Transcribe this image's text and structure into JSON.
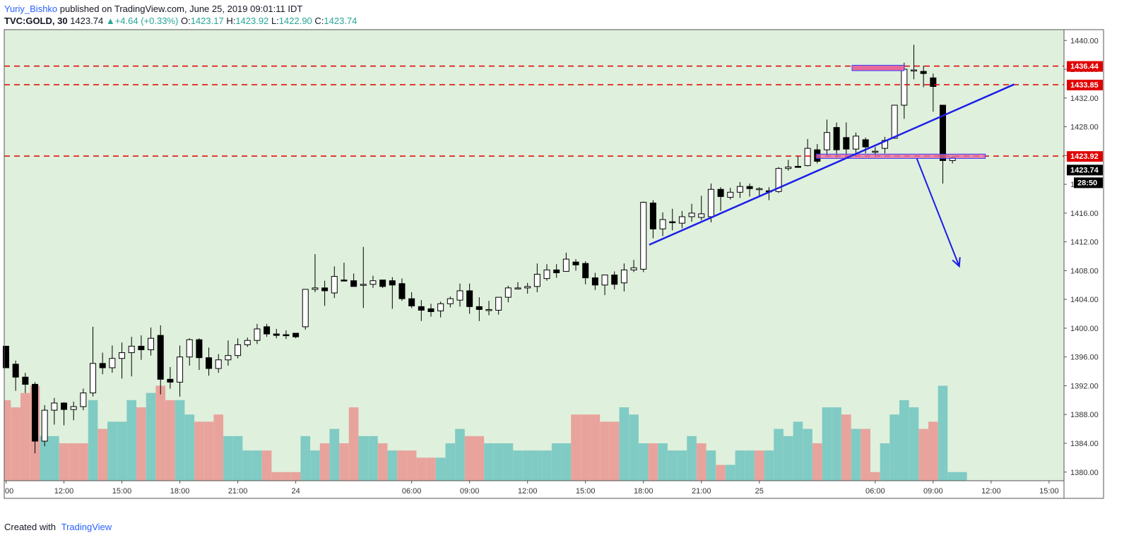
{
  "header": {
    "author": "Yuriy_Bishko",
    "published": "published on TradingView.com, June 25, 2019 09:01:11 IDT",
    "symbol": "TVC:GOLD, 30",
    "last": "1423.74",
    "arrow": "▲",
    "change": "+4.64 (+0.33%)",
    "o_label": "O:",
    "o": "1423.17",
    "h_label": "H:",
    "h": "1423.92",
    "l_label": "L:",
    "l": "1422.90",
    "c_label": "C:",
    "c": "1423.74"
  },
  "footer": {
    "created_with": "Created with",
    "brand": "TradingView"
  },
  "colors": {
    "background": "#dff0dc",
    "volume_up": "#80cbc4",
    "volume_down": "#e8a39c",
    "level_line": "#e00000",
    "trendline": "#1d1de8",
    "box_fill": "#e86a9a",
    "box_border": "#3b3bff",
    "candle_up": "#ffffff",
    "candle_down": "#000000"
  },
  "chart_data": {
    "type": "candlestick",
    "symbol": "TVC:GOLD",
    "interval": "30",
    "ylim": [
      1378.8,
      1441.5
    ],
    "y_ticks": [
      "1440.00",
      "1436.00",
      "1432.00",
      "1428.00",
      "1424.00",
      "1420.00",
      "1416.00",
      "1412.00",
      "1408.00",
      "1404.00",
      "1400.00",
      "1396.00",
      "1392.00",
      "1388.00",
      "1384.00",
      "1380.00"
    ],
    "x_ticks": [
      {
        "i": 0,
        "label": "00"
      },
      {
        "i": 6,
        "label": "12:00"
      },
      {
        "i": 12,
        "label": "15:00"
      },
      {
        "i": 18,
        "label": "18:00"
      },
      {
        "i": 24,
        "label": "21:00"
      },
      {
        "i": 30,
        "label": "24"
      },
      {
        "i": 42,
        "label": "06:00"
      },
      {
        "i": 48,
        "label": "09:00"
      },
      {
        "i": 54,
        "label": "12:00"
      },
      {
        "i": 60,
        "label": "15:00"
      },
      {
        "i": 66,
        "label": "18:00"
      },
      {
        "i": 72,
        "label": "21:00"
      },
      {
        "i": 78,
        "label": "25"
      },
      {
        "i": 90,
        "label": "06:00"
      },
      {
        "i": 96,
        "label": "09:00"
      },
      {
        "i": 102,
        "label": "12:00"
      },
      {
        "i": 108,
        "label": "15:00"
      }
    ],
    "candles": [
      [
        1397.5,
        1397.5,
        1394.5,
        1394.5
      ],
      [
        1395.0,
        1395.5,
        1391.3,
        1393.2
      ],
      [
        1393.2,
        1393.8,
        1391.0,
        1392.2
      ],
      [
        1392.2,
        1392.5,
        1382.6,
        1384.3
      ],
      [
        1384.3,
        1389.3,
        1383.6,
        1388.6
      ],
      [
        1388.6,
        1390.3,
        1386.6,
        1389.6
      ],
      [
        1389.6,
        1389.7,
        1386.5,
        1388.7
      ],
      [
        1388.7,
        1389.8,
        1387.2,
        1389.1
      ],
      [
        1389.1,
        1391.6,
        1388.6,
        1391.0
      ],
      [
        1391.0,
        1400.2,
        1390.5,
        1395.1
      ],
      [
        1395.1,
        1396.6,
        1393.6,
        1394.5
      ],
      [
        1394.5,
        1397.6,
        1393.8,
        1395.8
      ],
      [
        1395.8,
        1398.0,
        1393.0,
        1396.6
      ],
      [
        1396.6,
        1398.8,
        1393.3,
        1397.5
      ],
      [
        1397.5,
        1399.0,
        1395.6,
        1397.0
      ],
      [
        1397.0,
        1400.1,
        1396.2,
        1398.6
      ],
      [
        1399.0,
        1400.4,
        1390.8,
        1392.9
      ],
      [
        1392.9,
        1394.6,
        1391.6,
        1392.5
      ],
      [
        1392.5,
        1397.6,
        1390.5,
        1396.0
      ],
      [
        1396.0,
        1398.6,
        1394.8,
        1398.4
      ],
      [
        1398.4,
        1398.6,
        1394.2,
        1395.9
      ],
      [
        1395.9,
        1397.3,
        1393.4,
        1394.4
      ],
      [
        1394.4,
        1396.4,
        1393.8,
        1395.6
      ],
      [
        1395.6,
        1398.3,
        1394.8,
        1396.2
      ],
      [
        1396.2,
        1398.6,
        1395.8,
        1397.7
      ],
      [
        1397.7,
        1398.7,
        1397.4,
        1398.3
      ],
      [
        1398.3,
        1400.6,
        1397.8,
        1399.9
      ],
      [
        1400.2,
        1400.6,
        1398.8,
        1399.2
      ],
      [
        1399.2,
        1399.9,
        1398.6,
        1399.0
      ],
      [
        1399.1,
        1399.7,
        1398.5,
        1399.0
      ],
      [
        1399.3,
        1399.3,
        1398.6,
        1398.8
      ],
      [
        1400.2,
        1405.4,
        1399.8,
        1405.4
      ],
      [
        1405.4,
        1410.3,
        1405.0,
        1405.6
      ],
      [
        1405.6,
        1406.6,
        1403.1,
        1405.2
      ],
      [
        1404.9,
        1408.6,
        1404.2,
        1407.2
      ],
      [
        1406.7,
        1409.1,
        1406.5,
        1406.6
      ],
      [
        1406.6,
        1407.6,
        1406.0,
        1405.8
      ],
      [
        1406.1,
        1411.3,
        1402.8,
        1406.1
      ],
      [
        1406.1,
        1407.3,
        1405.6,
        1406.6
      ],
      [
        1406.7,
        1406.7,
        1405.6,
        1405.8
      ],
      [
        1406.6,
        1407.1,
        1402.7,
        1406.0
      ],
      [
        1406.2,
        1406.9,
        1403.8,
        1404.1
      ],
      [
        1404.1,
        1405.0,
        1402.8,
        1403.1
      ],
      [
        1403.0,
        1403.9,
        1401.0,
        1402.5
      ],
      [
        1402.7,
        1403.4,
        1401.6,
        1402.3
      ],
      [
        1402.4,
        1403.7,
        1401.5,
        1403.4
      ],
      [
        1403.4,
        1404.4,
        1402.9,
        1404.1
      ],
      [
        1403.9,
        1406.2,
        1403.0,
        1405.2
      ],
      [
        1405.2,
        1406.2,
        1402.0,
        1403.0
      ],
      [
        1403.0,
        1404.3,
        1401.0,
        1402.6
      ],
      [
        1402.5,
        1403.8,
        1401.8,
        1402.6
      ],
      [
        1402.5,
        1403.9,
        1401.9,
        1404.3
      ],
      [
        1404.3,
        1405.9,
        1403.6,
        1405.6
      ],
      [
        1405.6,
        1406.4,
        1405.4,
        1405.6
      ],
      [
        1405.6,
        1406.3,
        1404.8,
        1405.8
      ],
      [
        1405.8,
        1409.0,
        1405.0,
        1407.5
      ],
      [
        1406.9,
        1408.9,
        1406.6,
        1408.1
      ],
      [
        1408.1,
        1408.9,
        1407.0,
        1407.7
      ],
      [
        1407.9,
        1410.5,
        1408.0,
        1409.6
      ],
      [
        1409.2,
        1409.6,
        1408.0,
        1408.8
      ],
      [
        1409.0,
        1409.3,
        1406.1,
        1407.0
      ],
      [
        1407.0,
        1407.7,
        1405.3,
        1406.0
      ],
      [
        1406.0,
        1407.3,
        1404.6,
        1407.4
      ],
      [
        1407.4,
        1407.9,
        1405.4,
        1406.1
      ],
      [
        1406.3,
        1409.0,
        1405.1,
        1408.1
      ],
      [
        1408.1,
        1409.5,
        1407.8,
        1408.4
      ],
      [
        1408.2,
        1417.6,
        1407.8,
        1417.5
      ],
      [
        1417.4,
        1417.8,
        1412.5,
        1413.8
      ],
      [
        1413.8,
        1416.1,
        1412.8,
        1415.1
      ],
      [
        1414.8,
        1416.6,
        1413.6,
        1414.7
      ],
      [
        1414.6,
        1416.3,
        1413.9,
        1415.5
      ],
      [
        1415.5,
        1417.3,
        1414.8,
        1416.0
      ],
      [
        1415.4,
        1418.4,
        1415.0,
        1415.9
      ],
      [
        1415.5,
        1420.1,
        1414.7,
        1419.3
      ],
      [
        1419.3,
        1419.6,
        1416.3,
        1418.3
      ],
      [
        1418.2,
        1419.5,
        1417.9,
        1418.9
      ],
      [
        1418.9,
        1420.3,
        1418.1,
        1419.7
      ],
      [
        1419.7,
        1420.1,
        1418.3,
        1419.4
      ],
      [
        1419.4,
        1419.6,
        1418.3,
        1419.4
      ],
      [
        1419.1,
        1419.6,
        1417.8,
        1419.0
      ],
      [
        1419.0,
        1422.4,
        1418.8,
        1422.2
      ],
      [
        1422.2,
        1423.4,
        1421.9,
        1422.4
      ],
      [
        1422.5,
        1423.9,
        1422.3,
        1422.4
      ],
      [
        1422.6,
        1426.3,
        1422.5,
        1425.0
      ],
      [
        1424.8,
        1425.6,
        1422.9,
        1423.2
      ],
      [
        1424.8,
        1429.0,
        1424.0,
        1427.2
      ],
      [
        1427.9,
        1428.6,
        1423.7,
        1424.8
      ],
      [
        1426.5,
        1428.6,
        1423.7,
        1424.9
      ],
      [
        1424.9,
        1427.2,
        1423.8,
        1426.7
      ],
      [
        1426.2,
        1426.5,
        1424.3,
        1425.2
      ],
      [
        1424.6,
        1425.2,
        1424.0,
        1424.6
      ],
      [
        1425.0,
        1426.6,
        1424.3,
        1426.1
      ],
      [
        1426.4,
        1431.0,
        1426.4,
        1431.0
      ],
      [
        1431.0,
        1436.9,
        1429.1,
        1436.0
      ],
      [
        1435.8,
        1439.4,
        1434.6,
        1435.9
      ],
      [
        1435.7,
        1436.5,
        1433.5,
        1435.4
      ],
      [
        1434.8,
        1435.4,
        1430.1,
        1433.6
      ],
      [
        1431.0,
        1431.0,
        1420.1,
        1423.3
      ],
      [
        1423.3,
        1424.0,
        1422.9,
        1423.7
      ]
    ],
    "volume": {
      "up": [
        0,
        0,
        0,
        0,
        1,
        1,
        0,
        0,
        0,
        1,
        0,
        1,
        1,
        1,
        0,
        1,
        0,
        0,
        1,
        1,
        0,
        0,
        0,
        1,
        1,
        1,
        1,
        0,
        0,
        0,
        0,
        1,
        1,
        0,
        1,
        0,
        0,
        1,
        1,
        0,
        1,
        0,
        0,
        0,
        0,
        1,
        1,
        1,
        0,
        0,
        1,
        1,
        1,
        1,
        1,
        1,
        1,
        1,
        1,
        0,
        0,
        0,
        0,
        0,
        1,
        1,
        1,
        0,
        1,
        1,
        1,
        1,
        0,
        1,
        0,
        1,
        1,
        1,
        0,
        1,
        1,
        1,
        1,
        1,
        0,
        1,
        1,
        0,
        1,
        0,
        0,
        1,
        1,
        1,
        1,
        0,
        0,
        1,
        1,
        1
      ],
      "vals": [
        1390,
        1389,
        1391,
        1392,
        1385,
        1385,
        1384,
        1384,
        1384,
        1390,
        1386,
        1387,
        1387,
        1390,
        1389,
        1391,
        1392,
        1390,
        1390,
        1388,
        1387,
        1387,
        1388,
        1385,
        1385,
        1383,
        1383,
        1383,
        1380,
        1380,
        1380,
        1385,
        1383,
        1384,
        1386,
        1384,
        1389,
        1385,
        1385,
        1384,
        1383,
        1383,
        1383,
        1382,
        1382,
        1382,
        1384,
        1386,
        1385,
        1385,
        1384,
        1384,
        1384,
        1383,
        1383,
        1383,
        1383,
        1384,
        1384,
        1388,
        1388,
        1388,
        1387,
        1387,
        1389,
        1388,
        1384,
        1384,
        1384,
        1383,
        1383,
        1385,
        1384,
        1383,
        1381,
        1381,
        1383,
        1383,
        1383,
        1383,
        1386,
        1385,
        1387,
        1386,
        1384,
        1389,
        1389,
        1388,
        1386,
        1386,
        1380,
        1384,
        1388,
        1390,
        1389,
        1386,
        1387,
        1392,
        1380,
        1380
      ]
    },
    "price_labels": {
      "l1": "1436.44",
      "l2": "1433.85",
      "l3": "1423.92",
      "current": "1423.74",
      "countdown": "28:50"
    },
    "drawings": {
      "h_levels": [
        1436.44,
        1433.85,
        1423.92
      ],
      "trendline": {
        "x1": 66.6,
        "y1": 1411.6,
        "x2": 104.4,
        "y2": 1433.9
      },
      "arrow": {
        "x1": 94.3,
        "y1": 1423.6,
        "x2": 98.7,
        "y2": 1408.6
      },
      "box_top": {
        "x1": 87.6,
        "x2": 93.0,
        "y1": 1436.55,
        "y2": 1435.8
      },
      "box_mid": {
        "x1": 83.9,
        "x2": 101.4,
        "y1": 1424.2,
        "y2": 1423.6
      }
    }
  }
}
